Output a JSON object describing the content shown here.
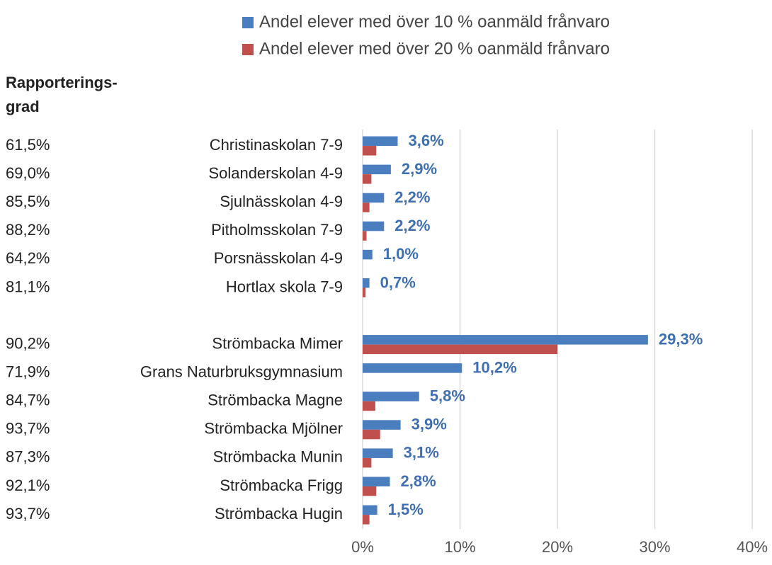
{
  "chart_data": {
    "type": "hbar",
    "column_header": [
      "Rapporterings-",
      "grad"
    ],
    "categories": [
      "Christinaskolan 7-9",
      "Solanderskolan 4-9",
      "Sjulnässkolan 4-9",
      "Pitholmsskolan 7-9",
      "Porsnässkolan 4-9",
      "Hortlax skola 7-9",
      null,
      "Strömbacka Mimer",
      "Grans Naturbruksgymnasium",
      "Strömbacka Magne",
      "Strömbacka Mjölner",
      "Strömbacka Munin",
      "Strömbacka Frigg",
      "Strömbacka Hugin"
    ],
    "reporting_rates": [
      "61,5%",
      "69,0%",
      "85,5%",
      "88,2%",
      "64,2%",
      "81,1%",
      null,
      "90,2%",
      "71,9%",
      "84,7%",
      "93,7%",
      "87,3%",
      "92,1%",
      "93,7%"
    ],
    "series": [
      {
        "name": "Andel elever med över 10 % oanmäld frånvaro",
        "color": "#4a7ebf",
        "values": [
          3.6,
          2.9,
          2.2,
          2.2,
          1.0,
          0.7,
          null,
          29.3,
          10.2,
          5.8,
          3.9,
          3.1,
          2.8,
          1.5
        ],
        "value_labels": [
          "3,6%",
          "2,9%",
          "2,2%",
          "2,2%",
          "1,0%",
          "0,7%",
          null,
          "29,3%",
          "10,2%",
          "5,8%",
          "3,9%",
          "3,1%",
          "2,8%",
          "1,5%"
        ]
      },
      {
        "name": "Andel elever med över 20 % oanmäld frånvaro",
        "color": "#c0504d",
        "values": [
          1.4,
          0.9,
          0.7,
          0.4,
          0,
          0.3,
          null,
          20.0,
          0,
          1.3,
          1.8,
          0.9,
          1.4,
          0.7
        ]
      }
    ],
    "value_label_color": "#3f6fb0",
    "xlim": [
      0,
      40
    ],
    "xticks": [
      {
        "value": 0,
        "label": "0%"
      },
      {
        "value": 10,
        "label": "10%"
      },
      {
        "value": 20,
        "label": "20%"
      },
      {
        "value": 30,
        "label": "30%"
      },
      {
        "value": 40,
        "label": "40%"
      }
    ],
    "grid": true
  }
}
